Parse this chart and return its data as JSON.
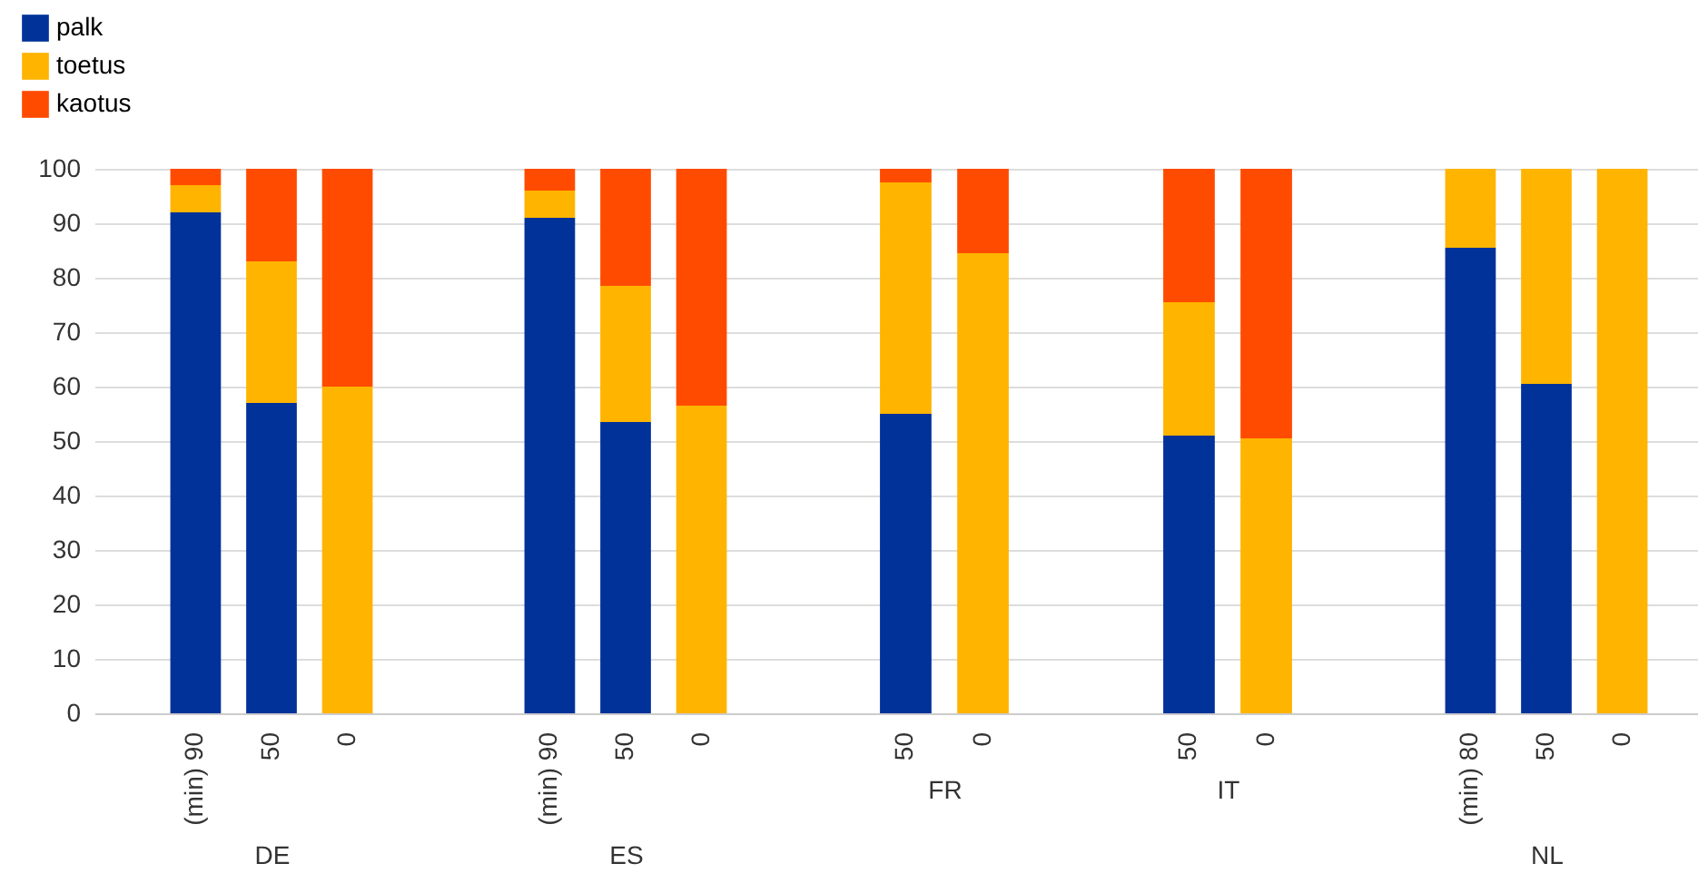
{
  "chart_data": [
    {
      "type": "bar",
      "stacked": true,
      "xlabel": "DE",
      "categories": [
        "(min) 90",
        "50",
        "0"
      ],
      "ylim": [
        0,
        100
      ],
      "yticks": [
        0,
        10,
        20,
        30,
        40,
        50,
        60,
        70,
        80,
        90,
        100
      ],
      "grid": "y",
      "legend": "top left",
      "series": [
        {
          "name": "palk",
          "color": "#003299",
          "values": [
            92,
            57,
            null
          ]
        },
        {
          "name": "toetus",
          "color": "#ffb400",
          "values": [
            5,
            26,
            60
          ]
        },
        {
          "name": "kaotus",
          "color": "#ff4b00",
          "values": [
            3,
            17,
            40
          ]
        }
      ]
    },
    {
      "type": "bar",
      "stacked": true,
      "xlabel": "ES",
      "categories": [
        "(min) 90",
        "50",
        "0"
      ],
      "ylim": [
        0,
        100
      ],
      "yticks": [
        0,
        10,
        20,
        30,
        40,
        50,
        60,
        70,
        80,
        90,
        100
      ],
      "grid": "y",
      "tick_labels": "x",
      "series": [
        {
          "color": "#003299",
          "values": [
            91,
            53.5,
            null
          ]
        },
        {
          "color": "#ffb400",
          "values": [
            5,
            25,
            56.5
          ]
        },
        {
          "color": "#ff4b00",
          "values": [
            4,
            21.5,
            43.5
          ]
        }
      ]
    },
    {
      "type": "bar",
      "stacked": true,
      "xlabel": "FR",
      "categories": [
        "50",
        "0"
      ],
      "ylim": [
        0,
        100
      ],
      "yticks": [
        0,
        10,
        20,
        30,
        40,
        50,
        60,
        70,
        80,
        90,
        100
      ],
      "grid": "y",
      "tick_labels": "x",
      "series": [
        {
          "color": "#003299",
          "values": [
            55,
            null
          ]
        },
        {
          "color": "#ffb400",
          "values": [
            42.5,
            84.5
          ]
        },
        {
          "color": "#ff4b00",
          "values": [
            2.5,
            15.5
          ]
        }
      ]
    },
    {
      "type": "bar",
      "stacked": true,
      "xlabel": "IT",
      "categories": [
        "50",
        "0"
      ],
      "ylim": [
        0,
        100
      ],
      "yticks": [
        0,
        10,
        20,
        30,
        40,
        50,
        60,
        70,
        80,
        90,
        100
      ],
      "grid": "y",
      "tick_labels": "x",
      "series": [
        {
          "color": "#003299",
          "values": [
            51,
            null
          ]
        },
        {
          "color": "#ffb400",
          "values": [
            24.5,
            50.5
          ]
        },
        {
          "color": "#ff4b00",
          "values": [
            24.5,
            49.5
          ]
        }
      ]
    },
    {
      "type": "bar",
      "stacked": true,
      "xlabel": "NL",
      "categories": [
        "(min) 80",
        "50",
        "0"
      ],
      "ylim": [
        0,
        100
      ],
      "yticks": [
        0,
        10,
        20,
        30,
        40,
        50,
        60,
        70,
        80,
        90,
        100
      ],
      "grid": "y",
      "tick_labels": "x",
      "series": [
        {
          "color": "#003299",
          "values": [
            85.5,
            60.5,
            null
          ]
        },
        {
          "color": "#ffb400",
          "values": [
            14.5,
            39.5,
            100
          ]
        },
        {
          "color": "#ff4b00",
          "values": [
            null,
            null,
            null
          ]
        }
      ]
    }
  ]
}
